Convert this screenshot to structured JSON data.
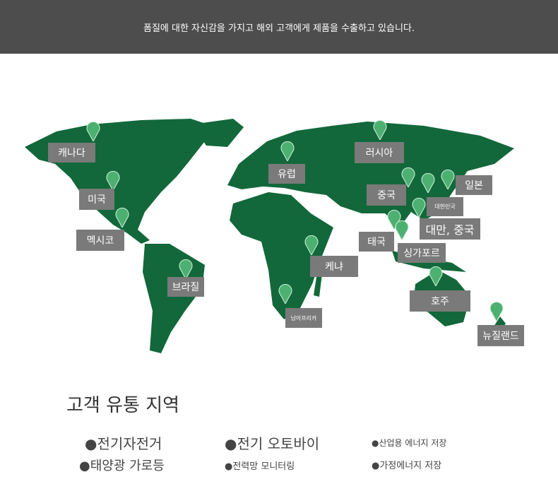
{
  "banner": {
    "text": "폼질에 대한 자신감을 가지고 해외 고객에게 제품을 수출하고 있습니다."
  },
  "colors": {
    "land": "#12683a",
    "pin": "#4cb071",
    "label_bg": "#7a7a7a",
    "banner": "#4d4d4d"
  },
  "regions": {
    "canada": "캐나다",
    "usa": "미국",
    "mexico": "멕시코",
    "brazil": "브라질",
    "europe": "유럽",
    "russia": "러시아",
    "china": "중국",
    "japan": "일본",
    "korea": "대한민국",
    "taiwan": "대만, 중국",
    "thailand": "태국",
    "singapore": "싱가포르",
    "kenya": "케냐",
    "south_africa": "남아프리카",
    "australia": "호주",
    "new_zealand": "뉴질랜드"
  },
  "section": {
    "title": "고객 유통 지역",
    "industries": [
      "●전기자전거",
      "●전기 오토바이",
      "●산업용 에너지 저장",
      "●태양광 가로등",
      "●전력망 모니터링",
      "●가정에너지 저장"
    ]
  }
}
